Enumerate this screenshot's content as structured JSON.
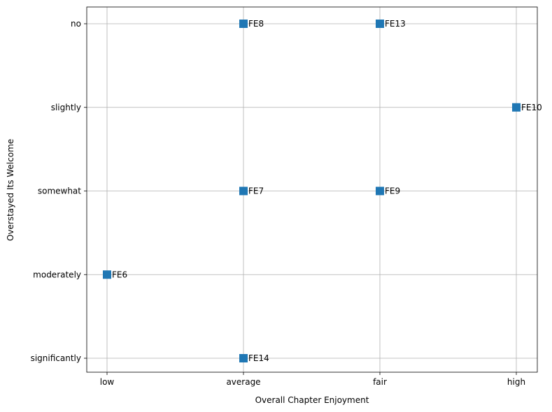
{
  "chart_data": {
    "type": "scatter",
    "xlabel": "Overall Chapter Enjoyment",
    "ylabel": "Overstayed Its Welcome",
    "x_categories": [
      "low",
      "average",
      "fair",
      "high"
    ],
    "y_categories": [
      "significantly",
      "moderately",
      "somewhat",
      "slightly",
      "no"
    ],
    "grid": true,
    "marker": "square",
    "marker_color": "#1f77b4",
    "points": [
      {
        "label": "FE6",
        "x": "low",
        "y": "moderately"
      },
      {
        "label": "FE7",
        "x": "average",
        "y": "somewhat"
      },
      {
        "label": "FE8",
        "x": "average",
        "y": "no"
      },
      {
        "label": "FE9",
        "x": "fair",
        "y": "somewhat"
      },
      {
        "label": "FE10",
        "x": "high",
        "y": "slightly"
      },
      {
        "label": "FE13",
        "x": "fair",
        "y": "no"
      },
      {
        "label": "FE14",
        "x": "average",
        "y": "significantly"
      }
    ]
  }
}
